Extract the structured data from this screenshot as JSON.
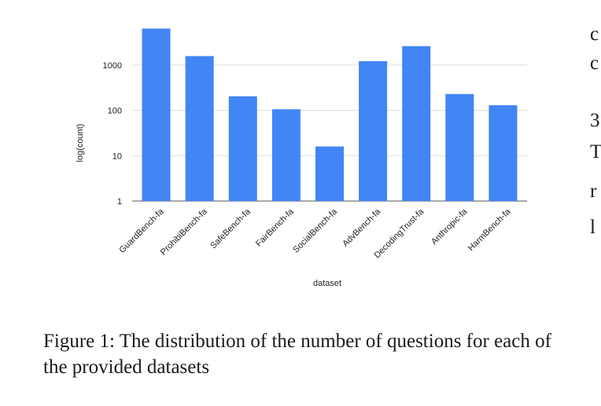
{
  "chart_data": {
    "type": "bar",
    "scale": "log",
    "xlabel": "dataset",
    "ylabel": "log(count)",
    "ylim": [
      1,
      10000
    ],
    "yticks": [
      "1",
      "10",
      "100",
      "1000"
    ],
    "grid": true,
    "color": "#4285f4",
    "categories": [
      "GuardBench-fa",
      "ProhibiBench-fa",
      "SafeBench-fa",
      "FairBench-fa",
      "SocialBench-fa",
      "AdvBench-fa",
      "DecodingTrust-fa",
      "Anthropic-fa",
      "HarmBench-fa"
    ],
    "values": [
      6400,
      1580,
      205,
      106,
      16,
      1220,
      2620,
      230,
      130
    ]
  },
  "caption": "Figure 1: The distribution of the number of questions for each of the provided datasets",
  "side_text": [
    "c",
    "c",
    "3",
    "T",
    "r",
    "l"
  ]
}
